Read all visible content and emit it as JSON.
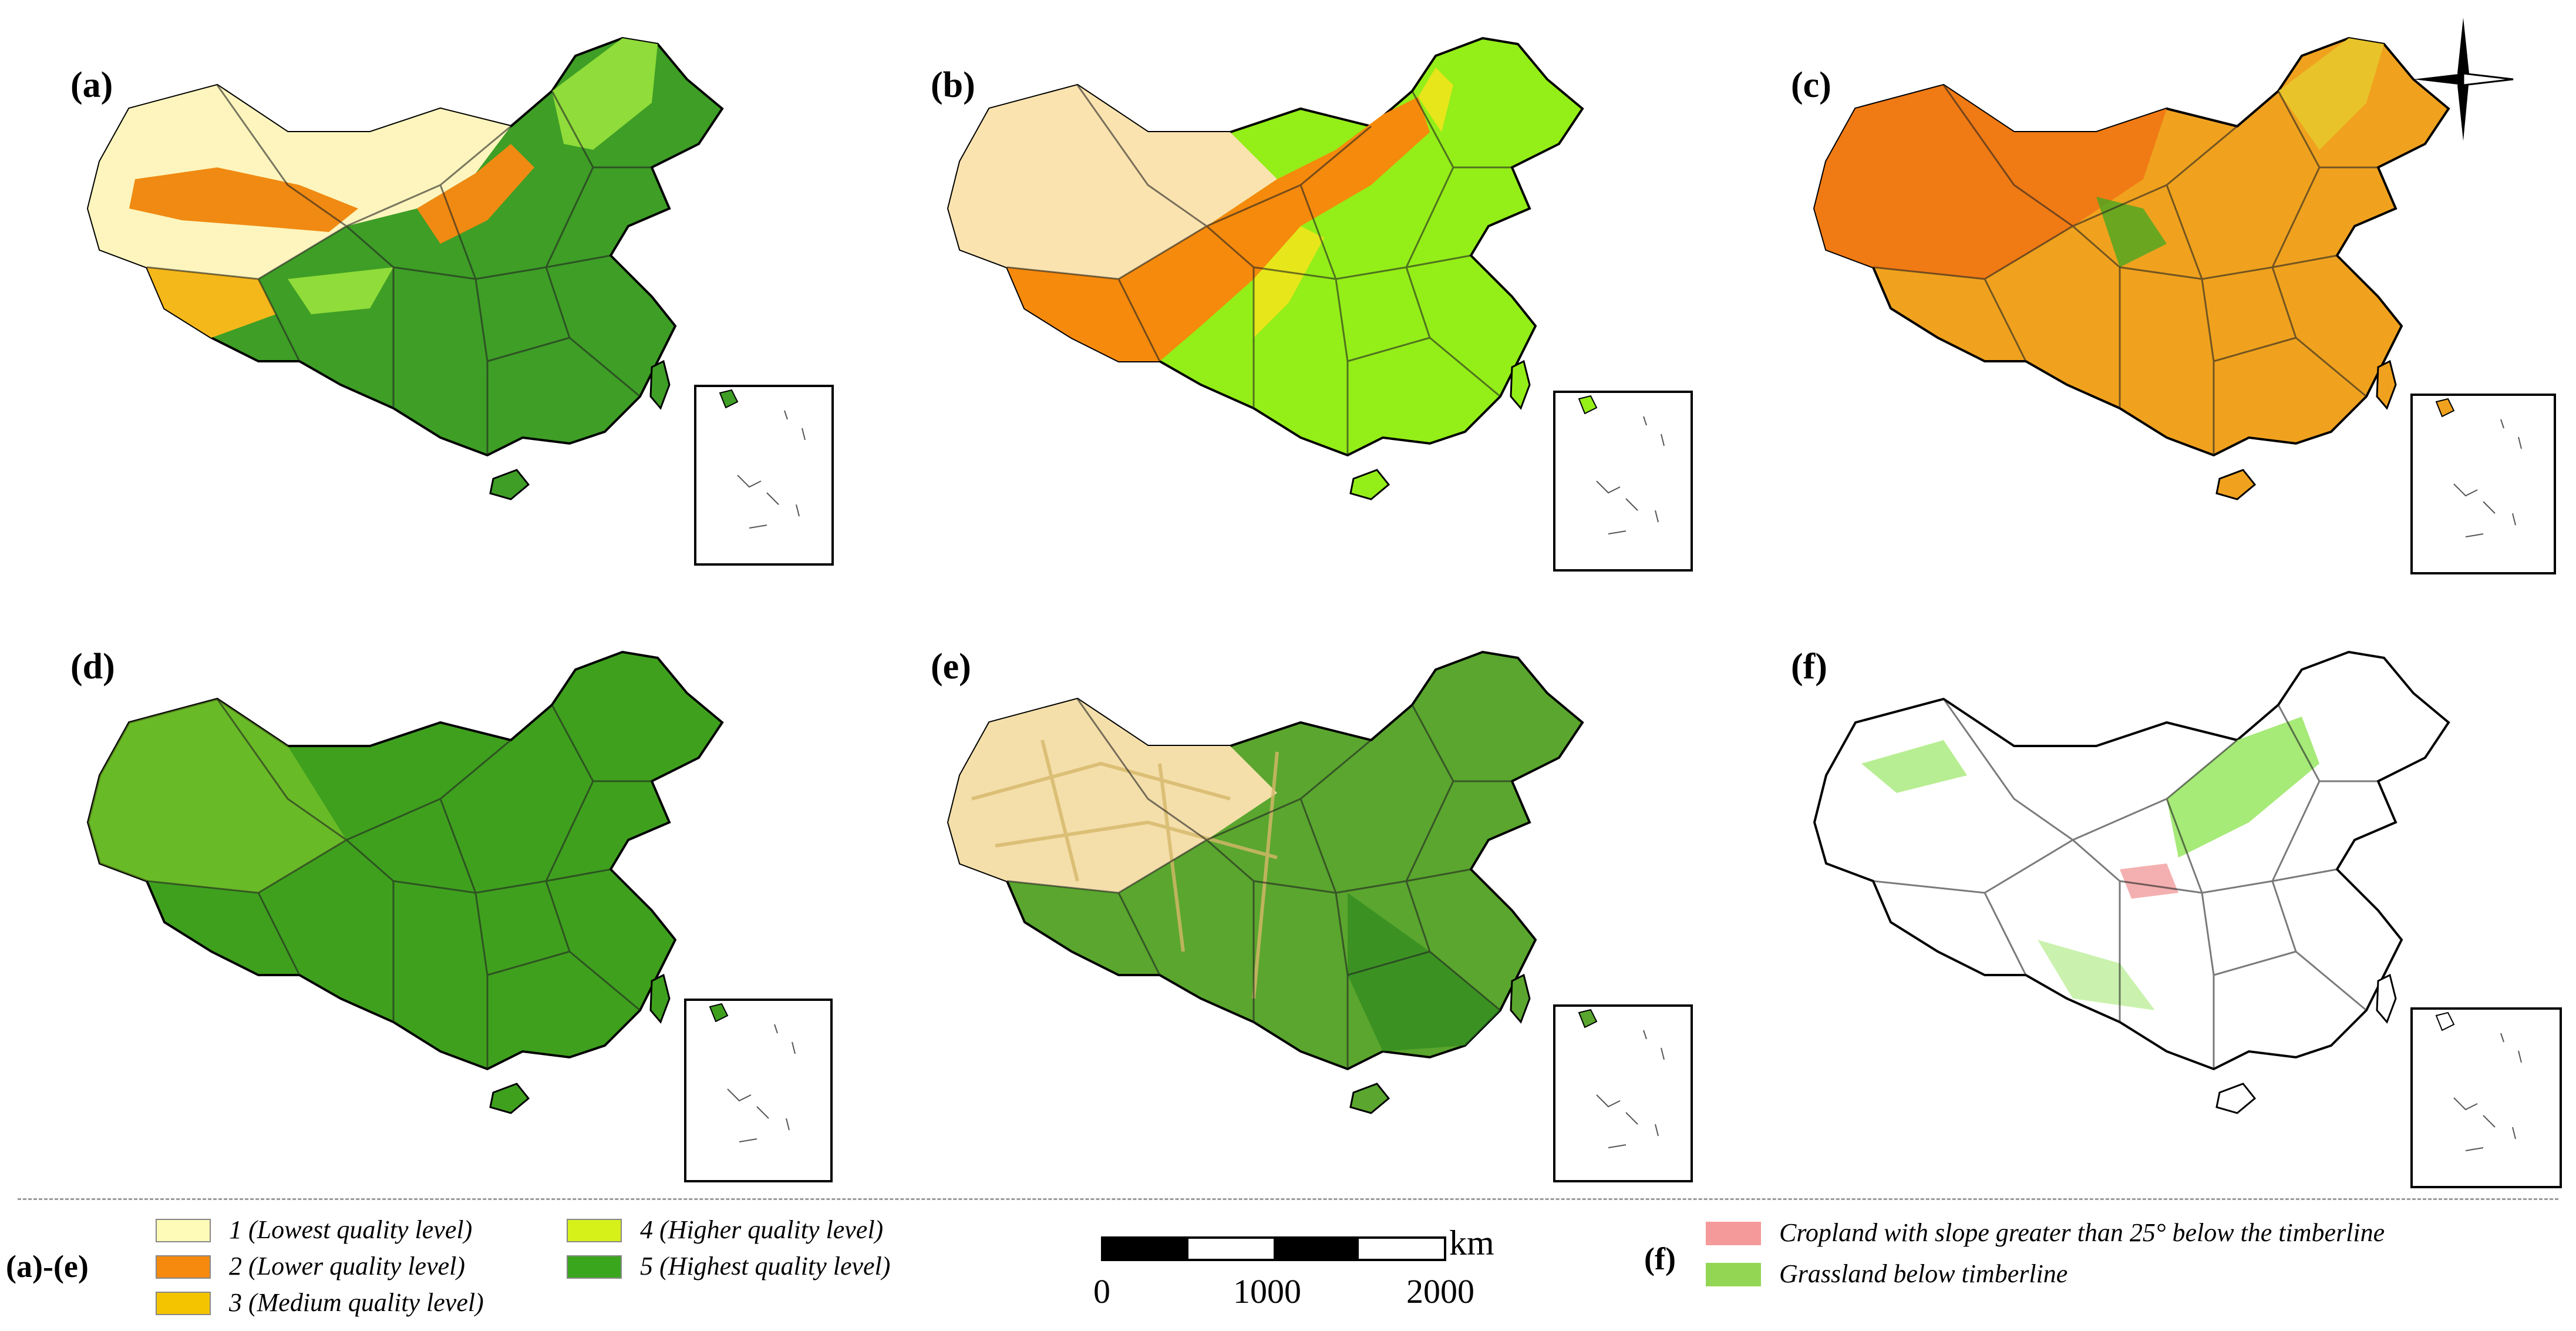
{
  "panels": [
    {
      "id": "a",
      "label": "(a)"
    },
    {
      "id": "b",
      "label": "(b)"
    },
    {
      "id": "c",
      "label": "(c)"
    },
    {
      "id": "d",
      "label": "(d)"
    },
    {
      "id": "e",
      "label": "(e)"
    },
    {
      "id": "f",
      "label": "(f)"
    }
  ],
  "legend_ae": {
    "group_label": "(a)-(e)",
    "items": [
      {
        "text": "1 (Lowest quality level)",
        "color": "#fefab8"
      },
      {
        "text": "2 (Lower quality level)",
        "color": "#f58a0f"
      },
      {
        "text": "3 (Medium quality level)",
        "color": "#f5c400"
      },
      {
        "text": "4 (Higher quality level)",
        "color": "#d6f01a"
      },
      {
        "text": "5 (Highest quality level)",
        "color": "#3aa61e"
      }
    ]
  },
  "scale_bar": {
    "unit": "km",
    "ticks": [
      "0",
      "1000",
      "2000"
    ]
  },
  "legend_f": {
    "group_label": "(f)",
    "items": [
      {
        "text": "Cropland with slope greater than 25° below the timberline",
        "color": "#f59a9a"
      },
      {
        "text": "Grassland below timberline",
        "color": "#93d654"
      }
    ]
  },
  "colors": {
    "a_base": "#3e9e26",
    "a_north": "#8fdc3a",
    "a_west": "#fdf5bd",
    "a_orange": "#f08a12",
    "a_yellow": "#f5b81a",
    "b_base": "#94ee18",
    "b_west": "#fbe3b0",
    "b_orange": "#f58a0c",
    "b_yellow": "#e6e61a",
    "c_base": "#f0a21e",
    "c_orange": "#f07a14",
    "c_green": "#4aa820",
    "d_base": "#3fa01e",
    "d_light": "#8ccf30",
    "e_base": "#5aa62e",
    "e_tan": "#f4dfaa",
    "e_dark": "#2e8a1e",
    "f_green": "#a6ea78",
    "f_pink": "#f4b0b0"
  }
}
